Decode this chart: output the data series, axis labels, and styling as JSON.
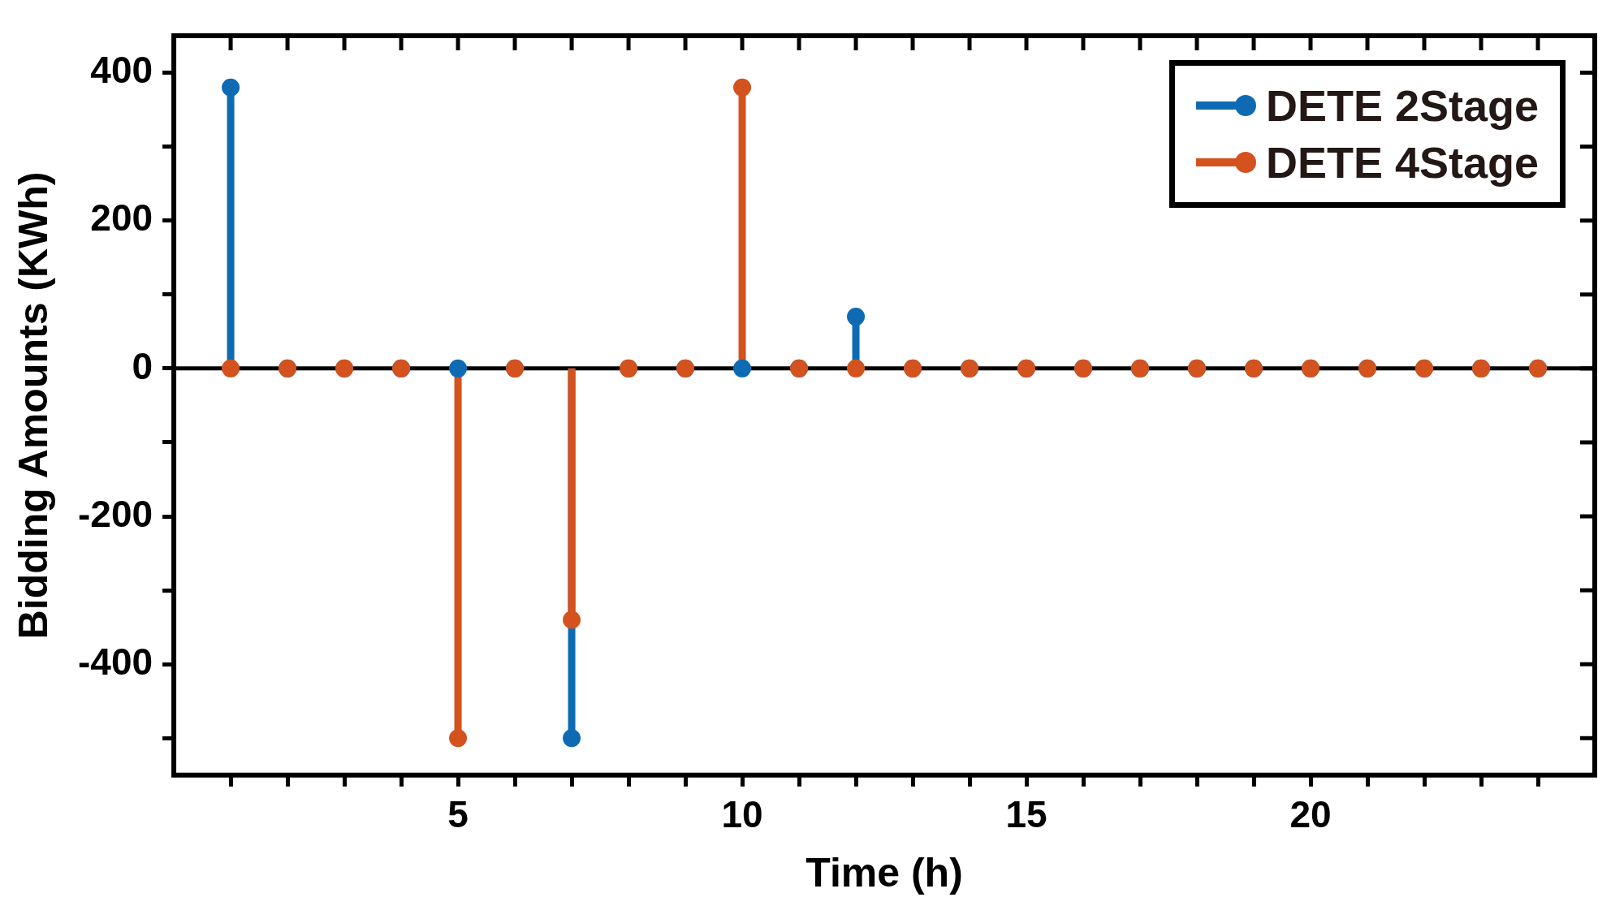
{
  "chart_data": {
    "type": "lollipop",
    "xlabel": "Time (h)",
    "ylabel": "Bidding Amounts (KWh)",
    "x": [
      1,
      2,
      3,
      4,
      5,
      6,
      7,
      8,
      9,
      10,
      11,
      12,
      13,
      14,
      15,
      16,
      17,
      18,
      19,
      20,
      21,
      22,
      23,
      24
    ],
    "series": [
      {
        "name": "DETE 2Stage",
        "color": "#0e6bb3",
        "values": [
          380,
          0,
          0,
          0,
          0,
          0,
          -500,
          0,
          0,
          0,
          0,
          70,
          0,
          0,
          0,
          0,
          0,
          0,
          0,
          0,
          0,
          0,
          0,
          0
        ]
      },
      {
        "name": "DETE 4Stage",
        "color": "#d3521d",
        "values": [
          0,
          0,
          0,
          0,
          -500,
          0,
          -340,
          0,
          0,
          380,
          0,
          0,
          0,
          0,
          0,
          0,
          0,
          0,
          0,
          0,
          0,
          0,
          0,
          0
        ]
      }
    ],
    "xlim": [
      0,
      25
    ],
    "xticks": [
      {
        "value": 1,
        "label": null
      },
      {
        "value": 2,
        "label": null
      },
      {
        "value": 3,
        "label": null
      },
      {
        "value": 4,
        "label": null
      },
      5,
      {
        "value": 6,
        "label": null
      },
      {
        "value": 7,
        "label": null
      },
      {
        "value": 8,
        "label": null
      },
      {
        "value": 9,
        "label": null
      },
      10,
      {
        "value": 11,
        "label": null
      },
      {
        "value": 12,
        "label": null
      },
      {
        "value": 13,
        "label": null
      },
      {
        "value": 14,
        "label": null
      },
      15,
      {
        "value": 16,
        "label": null
      },
      {
        "value": 17,
        "label": null
      },
      {
        "value": 18,
        "label": null
      },
      {
        "value": 19,
        "label": null
      },
      20,
      {
        "value": 21,
        "label": null
      },
      {
        "value": 22,
        "label": null
      },
      {
        "value": 23,
        "label": null
      },
      {
        "value": 24,
        "label": null
      }
    ],
    "ylim": [
      -550,
      450
    ],
    "yticks": [
      {
        "value": -500,
        "label": null
      },
      -400,
      {
        "value": -300,
        "label": null
      },
      -200,
      {
        "value": -100,
        "label": null
      },
      0,
      {
        "value": 100,
        "label": null
      },
      200,
      {
        "value": 300,
        "label": null
      },
      400
    ],
    "ref_lines": [
      {
        "axis": "y",
        "value": 0,
        "color": "#000000"
      }
    ],
    "grid": false,
    "legend": "top right",
    "marker": "circle",
    "line_style": "solid"
  }
}
